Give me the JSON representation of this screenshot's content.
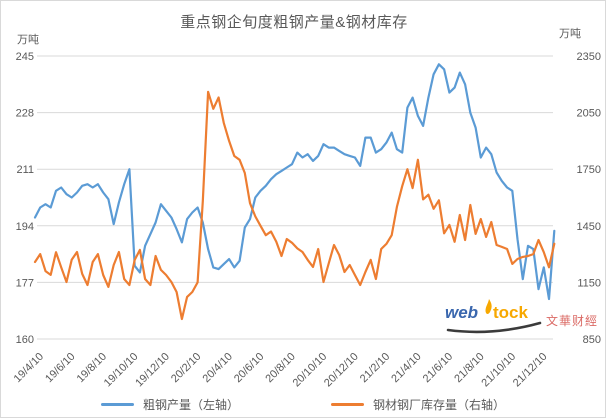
{
  "title": "重点钢企旬度粗钢产量&钢材库存",
  "left_axis": {
    "unit": "万吨",
    "ticks": [
      245,
      228,
      211,
      194,
      177,
      160
    ]
  },
  "right_axis": {
    "unit": "万吨",
    "ticks": [
      2350,
      2050,
      1750,
      1450,
      1150,
      850
    ]
  },
  "x_axis": {
    "labels": [
      "19/4/10",
      "19/6/10",
      "19/8/10",
      "19/10/10",
      "19/12/10",
      "20/2/10",
      "20/4/10",
      "20/6/10",
      "20/8/10",
      "20/10/10",
      "20/12/10",
      "21/2/10",
      "21/4/10",
      "21/6/10",
      "21/8/10",
      "21/10/10",
      "21/12/10"
    ],
    "label_every": 6
  },
  "legend": {
    "series1": "粗钢产量（左轴）",
    "series2": "钢材钢厂库存量（右轴）"
  },
  "watermark": {
    "web": "web",
    "tock": "tock",
    "cn": "文華财經"
  },
  "colors": {
    "series1": "#5B9BD5",
    "series2": "#ED7D31",
    "grid": "#D9D9D9",
    "text": "#595959",
    "watermark_web": "#3A67AE",
    "watermark_tock": "#F7A800",
    "watermark_cn": "#DB6B66"
  },
  "chart_data": {
    "type": "line",
    "title": "重点钢企旬度粗钢产量&钢材库存",
    "x_tick_labels": [
      "19/4/10",
      "19/6/10",
      "19/8/10",
      "19/10/10",
      "19/12/10",
      "20/2/10",
      "20/4/10",
      "20/6/10",
      "20/8/10",
      "20/10/10",
      "20/12/10",
      "21/2/10",
      "21/4/10",
      "21/6/10",
      "21/8/10",
      "21/10/10",
      "21/12/10"
    ],
    "x_tick_every": 6,
    "x_unit": "ten-day periods (旬)",
    "left_ylim": [
      160,
      245
    ],
    "right_ylim": [
      850,
      2350
    ],
    "grid": "horizontal",
    "legend_position": "bottom",
    "series": [
      {
        "name": "粗钢产量（左轴）",
        "axis": "left",
        "color": "#5B9BD5",
        "values": [
          196.5,
          199.5,
          200.5,
          199.5,
          204.5,
          205.5,
          203.5,
          202.5,
          204,
          206,
          206.5,
          205.5,
          206.5,
          204,
          202,
          194.5,
          201,
          206.5,
          211,
          182,
          180,
          188,
          191.5,
          195,
          200.5,
          198.5,
          196.5,
          193,
          189,
          196,
          198,
          199.5,
          195,
          187,
          181.5,
          181,
          182.5,
          184,
          181.5,
          183.5,
          193.5,
          196,
          202.5,
          204.5,
          206,
          208,
          209.5,
          210.5,
          211.5,
          212.5,
          216,
          214.5,
          215.5,
          213.5,
          215,
          218.5,
          217.5,
          217.5,
          216.5,
          215.5,
          215,
          214.5,
          212,
          220.5,
          220.5,
          216,
          217,
          219,
          222,
          217,
          216,
          229.5,
          232.5,
          227,
          224,
          232.5,
          239.5,
          242.5,
          241,
          234,
          235.5,
          240,
          236.5,
          228,
          223.5,
          214.5,
          217.5,
          215.5,
          210,
          207.5,
          205.5,
          204.5,
          190,
          178,
          188,
          187,
          175,
          181.5,
          172,
          192.5
        ]
      },
      {
        "name": "钢材钢厂库存量（右轴）",
        "axis": "right",
        "color": "#ED7D31",
        "values": [
          1258,
          1300,
          1210,
          1190,
          1310,
          1230,
          1152,
          1270,
          1311,
          1195,
          1136,
          1258,
          1300,
          1189,
          1126,
          1242,
          1311,
          1168,
          1136,
          1269,
          1322,
          1168,
          1136,
          1290,
          1216,
          1189,
          1152,
          1099,
          956,
          1073,
          1099,
          1150,
          1580,
          2160,
          2070,
          2130,
          1995,
          1900,
          1820,
          1800,
          1730,
          1570,
          1500,
          1450,
          1400,
          1420,
          1365,
          1290,
          1380,
          1360,
          1330,
          1311,
          1269,
          1232,
          1327,
          1152,
          1250,
          1348,
          1295,
          1205,
          1242,
          1189,
          1136,
          1205,
          1269,
          1168,
          1327,
          1354,
          1400,
          1550,
          1660,
          1750,
          1650,
          1800,
          1590,
          1615,
          1540,
          1585,
          1410,
          1455,
          1365,
          1507,
          1375,
          1560,
          1407,
          1486,
          1391,
          1470,
          1348,
          1338,
          1327,
          1248,
          1274,
          1285,
          1290,
          1300,
          1375,
          1310,
          1230,
          1355
        ]
      }
    ]
  }
}
